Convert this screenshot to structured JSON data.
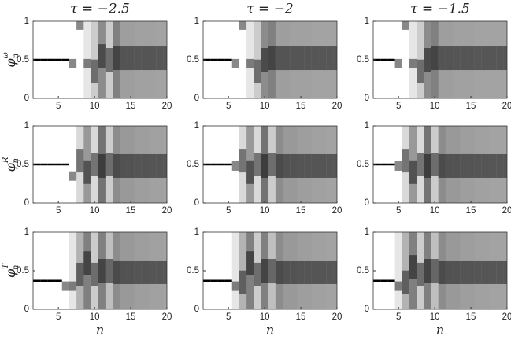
{
  "chart_data": {
    "type": "heatmap-grid",
    "xlim": [
      1.5,
      20
    ],
    "ylim": [
      0,
      1
    ],
    "xticks": [
      5,
      10,
      15,
      20
    ],
    "yticks": [
      0,
      0.5,
      1
    ],
    "x_label": "n",
    "titles": [
      "τ = −2.5",
      "τ = −2",
      "τ = −1.5"
    ],
    "row_labels": [
      {
        "base": "φ",
        "sub": "n",
        "sup": "ω"
      },
      {
        "base": "φ",
        "sub": "n",
        "sup": "R"
      },
      {
        "base": "φ",
        "sub": "n",
        "sup": "T"
      }
    ],
    "x": [
      2,
      3,
      4,
      5,
      6,
      7,
      8,
      9,
      10,
      11,
      12,
      13,
      14,
      15,
      16,
      17,
      18,
      19,
      20
    ],
    "panels": [
      [
        {
          "peak": [
            0.5,
            0.5,
            0.5,
            0.5,
            0.5,
            0.45,
            0.95,
            0.45,
            0.35,
            0.55,
            0.5,
            0.52,
            0.52,
            0.52,
            0.52,
            0.52,
            0.52,
            0.52,
            0.52
          ],
          "shade": [
            1,
            1,
            1,
            1,
            1,
            1,
            1,
            0.9,
            0.8,
            0.55,
            0.8,
            0.5,
            0.62,
            0.62,
            0.63,
            0.63,
            0.63,
            0.64,
            0.64
          ]
        },
        {
          "peak": [
            0.5,
            0.5,
            0.5,
            0.5,
            0.45,
            0.95,
            0.45,
            0.35,
            0.5,
            0.52,
            0.52,
            0.52,
            0.52,
            0.52,
            0.52,
            0.52,
            0.52,
            0.52,
            0.52
          ],
          "shade": [
            1,
            1,
            1,
            1,
            1,
            1,
            0.9,
            0.8,
            0.55,
            0.5,
            0.62,
            0.62,
            0.63,
            0.63,
            0.63,
            0.64,
            0.64,
            0.64,
            0.64
          ]
        },
        {
          "peak": [
            0.5,
            0.5,
            0.5,
            0.45,
            0.95,
            0.45,
            0.35,
            0.5,
            0.52,
            0.52,
            0.52,
            0.52,
            0.52,
            0.52,
            0.52,
            0.52,
            0.52,
            0.52,
            0.52
          ],
          "shade": [
            1,
            1,
            1,
            1,
            1,
            0.9,
            0.8,
            0.55,
            0.5,
            0.62,
            0.62,
            0.63,
            0.63,
            0.63,
            0.64,
            0.64,
            0.64,
            0.64,
            0.64
          ]
        }
      ],
      [
        {
          "peak": [
            0.5,
            0.5,
            0.5,
            0.5,
            0.5,
            0.35,
            0.55,
            0.4,
            0.5,
            0.48,
            0.5,
            0.48,
            0.48,
            0.48,
            0.48,
            0.48,
            0.48,
            0.48,
            0.48
          ],
          "shade": [
            1,
            1,
            1,
            1,
            1,
            1,
            0.85,
            0.6,
            0.85,
            0.45,
            0.8,
            0.55,
            0.6,
            0.6,
            0.62,
            0.62,
            0.63,
            0.63,
            0.64
          ]
        },
        {
          "peak": [
            0.5,
            0.5,
            0.5,
            0.5,
            0.48,
            0.55,
            0.4,
            0.5,
            0.48,
            0.5,
            0.48,
            0.48,
            0.48,
            0.48,
            0.48,
            0.48,
            0.48,
            0.48,
            0.48
          ],
          "shade": [
            1,
            1,
            1,
            1,
            1,
            0.85,
            0.6,
            0.85,
            0.45,
            0.8,
            0.55,
            0.6,
            0.6,
            0.62,
            0.62,
            0.63,
            0.63,
            0.64,
            0.64
          ]
        },
        {
          "peak": [
            0.5,
            0.5,
            0.5,
            0.48,
            0.55,
            0.4,
            0.5,
            0.48,
            0.5,
            0.48,
            0.48,
            0.48,
            0.48,
            0.48,
            0.48,
            0.48,
            0.48,
            0.48,
            0.48
          ],
          "shade": [
            1,
            1,
            1,
            1,
            0.85,
            0.6,
            0.85,
            0.45,
            0.8,
            0.55,
            0.6,
            0.6,
            0.62,
            0.62,
            0.63,
            0.63,
            0.64,
            0.64,
            0.64
          ]
        }
      ],
      [
        {
          "peak": [
            0.37,
            0.37,
            0.37,
            0.37,
            0.3,
            0.3,
            0.45,
            0.6,
            0.45,
            0.5,
            0.5,
            0.48,
            0.48,
            0.48,
            0.48,
            0.48,
            0.48,
            0.48,
            0.48
          ],
          "shade": [
            1,
            1,
            1,
            1,
            1,
            0.9,
            0.7,
            0.5,
            0.8,
            0.5,
            0.75,
            0.55,
            0.6,
            0.6,
            0.62,
            0.62,
            0.63,
            0.63,
            0.64
          ]
        },
        {
          "peak": [
            0.37,
            0.37,
            0.37,
            0.37,
            0.3,
            0.35,
            0.6,
            0.45,
            0.5,
            0.5,
            0.48,
            0.48,
            0.48,
            0.48,
            0.48,
            0.48,
            0.48,
            0.48,
            0.48
          ],
          "shade": [
            1,
            1,
            1,
            1,
            0.9,
            0.7,
            0.5,
            0.8,
            0.5,
            0.75,
            0.55,
            0.6,
            0.6,
            0.62,
            0.62,
            0.63,
            0.63,
            0.64,
            0.64
          ]
        },
        {
          "peak": [
            0.37,
            0.37,
            0.37,
            0.3,
            0.35,
            0.55,
            0.45,
            0.5,
            0.5,
            0.48,
            0.48,
            0.48,
            0.48,
            0.48,
            0.48,
            0.48,
            0.48,
            0.48,
            0.48
          ],
          "shade": [
            1,
            1,
            1,
            0.9,
            0.7,
            0.5,
            0.8,
            0.5,
            0.75,
            0.55,
            0.6,
            0.6,
            0.62,
            0.62,
            0.63,
            0.63,
            0.64,
            0.64,
            0.64
          ]
        }
      ]
    ]
  }
}
